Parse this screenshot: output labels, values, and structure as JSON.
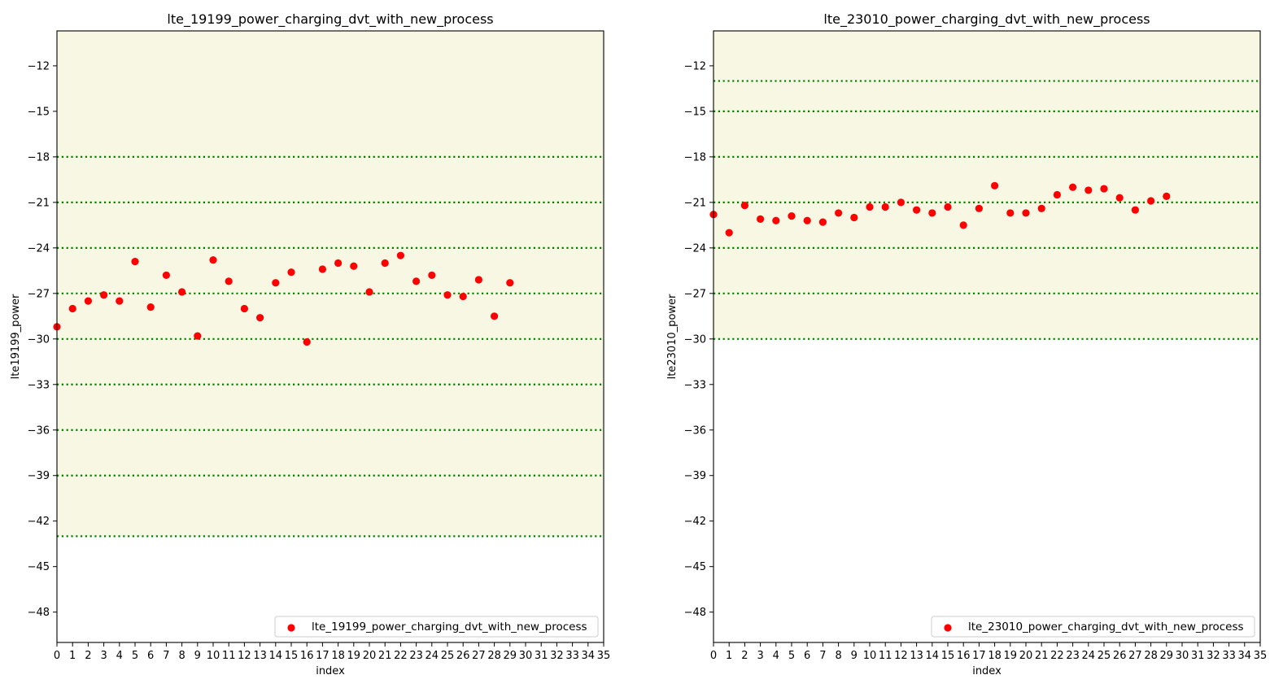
{
  "chart_data": [
    {
      "type": "scatter",
      "title": "lte_19199_power_charging_dvt_with_new_process",
      "xlabel": "index",
      "ylabel": "lte19199_power",
      "xlim": [
        0,
        35
      ],
      "ylim": [
        -50,
        -9.7
      ],
      "xticks": [
        0,
        1,
        2,
        3,
        4,
        5,
        6,
        7,
        8,
        9,
        10,
        11,
        12,
        13,
        14,
        15,
        16,
        17,
        18,
        19,
        20,
        21,
        22,
        23,
        24,
        25,
        26,
        27,
        28,
        29,
        30,
        31,
        32,
        33,
        34,
        35
      ],
      "yticks": [
        -12,
        -15,
        -18,
        -21,
        -24,
        -27,
        -30,
        -33,
        -36,
        -39,
        -42,
        -45,
        -48
      ],
      "shaded_band": [
        -43,
        -9.7
      ],
      "band_color": "#f8f7e3",
      "limit_lines": [
        -18,
        -21,
        -24,
        -27,
        -30,
        -33,
        -36,
        -39,
        -43
      ],
      "limit_color": "#008000",
      "series": [
        {
          "name": "lte_19199_power_charging_dvt_with_new_process",
          "color": "#ff0000",
          "x": [
            0,
            1,
            2,
            3,
            4,
            5,
            6,
            7,
            8,
            9,
            10,
            11,
            12,
            13,
            14,
            15,
            16,
            17,
            18,
            19,
            20,
            21,
            22,
            23,
            24,
            25,
            26,
            27,
            28,
            29
          ],
          "y": [
            -29.2,
            -28.0,
            -27.5,
            -27.1,
            -27.5,
            -24.9,
            -27.9,
            -25.8,
            -26.9,
            -29.8,
            -24.8,
            -26.2,
            -28.0,
            -28.6,
            -26.3,
            -25.6,
            -30.2,
            -25.4,
            -25.0,
            -25.2,
            -26.9,
            -25.0,
            -24.5,
            -26.2,
            -25.8,
            -27.1,
            -27.2,
            -26.1,
            -28.5,
            -26.3
          ]
        }
      ],
      "legend": {
        "label": "lte_19199_power_charging_dvt_with_new_process",
        "placement": "lower right"
      }
    },
    {
      "type": "scatter",
      "title": "lte_23010_power_charging_dvt_with_new_process",
      "xlabel": "index",
      "ylabel": "lte23010_power",
      "xlim": [
        0,
        35
      ],
      "ylim": [
        -50,
        -9.7
      ],
      "xticks": [
        0,
        1,
        2,
        3,
        4,
        5,
        6,
        7,
        8,
        9,
        10,
        11,
        12,
        13,
        14,
        15,
        16,
        17,
        18,
        19,
        20,
        21,
        22,
        23,
        24,
        25,
        26,
        27,
        28,
        29,
        30,
        31,
        32,
        33,
        34,
        35
      ],
      "yticks": [
        -12,
        -15,
        -18,
        -21,
        -24,
        -27,
        -30,
        -33,
        -36,
        -39,
        -42,
        -45,
        -48
      ],
      "shaded_band": [
        -30,
        -9.7
      ],
      "band_color": "#f8f7e3",
      "limit_lines": [
        -13,
        -15,
        -18,
        -21,
        -24,
        -27,
        -30
      ],
      "limit_color": "#008000",
      "series": [
        {
          "name": "lte_23010_power_charging_dvt_with_new_process",
          "color": "#ff0000",
          "x": [
            0,
            1,
            2,
            3,
            4,
            5,
            6,
            7,
            8,
            9,
            10,
            11,
            12,
            13,
            14,
            15,
            16,
            17,
            18,
            19,
            20,
            21,
            22,
            23,
            24,
            25,
            26,
            27,
            28,
            29
          ],
          "y": [
            -21.8,
            -23.0,
            -21.2,
            -22.1,
            -22.2,
            -21.9,
            -22.2,
            -22.3,
            -21.7,
            -22.0,
            -21.3,
            -21.3,
            -21.0,
            -21.5,
            -21.7,
            -21.3,
            -22.5,
            -21.4,
            -19.9,
            -21.7,
            -21.7,
            -21.4,
            -20.5,
            -20.0,
            -20.2,
            -20.1,
            -20.7,
            -21.5,
            -20.9,
            -20.6
          ]
        }
      ],
      "legend": {
        "label": "lte_23010_power_charging_dvt_with_new_process",
        "placement": "lower right"
      }
    }
  ]
}
